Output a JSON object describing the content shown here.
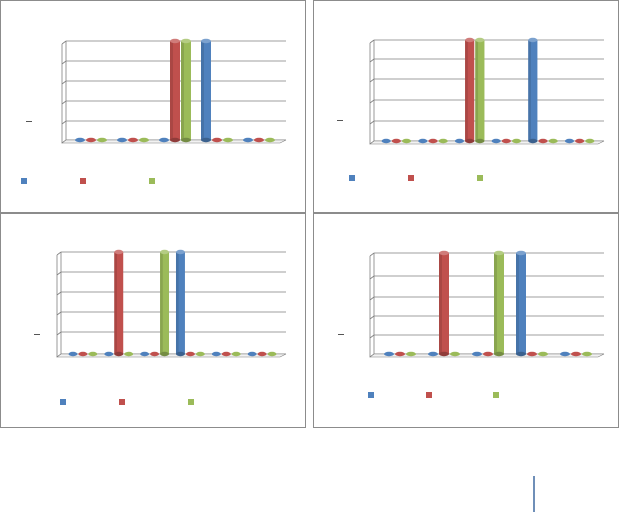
{
  "colors": {
    "series1": "#4f81bd",
    "series2": "#c0504d",
    "series3": "#9bbb59",
    "grid": "#7f7f7f",
    "panel_border": "#8c8c8c"
  },
  "chart_data": [
    {
      "type": "bar",
      "title": "",
      "xlabel": "",
      "ylabel": "",
      "categories": [
        "",
        "",
        "",
        "",
        ""
      ],
      "ylim": [
        0,
        5
      ],
      "grid": true,
      "legend_placement": "bottom",
      "series": [
        {
          "name": "",
          "color": "#4f81bd",
          "values": [
            0,
            0,
            0,
            5,
            0
          ]
        },
        {
          "name": "",
          "color": "#c0504d",
          "values": [
            0,
            0,
            5,
            0,
            0
          ]
        },
        {
          "name": "",
          "color": "#9bbb59",
          "values": [
            0,
            0,
            5,
            0,
            0
          ]
        }
      ]
    },
    {
      "type": "bar",
      "title": "",
      "xlabel": "",
      "ylabel": "",
      "categories": [
        "",
        "",
        "",
        "",
        "",
        ""
      ],
      "ylim": [
        0,
        5
      ],
      "grid": true,
      "legend_placement": "bottom",
      "series": [
        {
          "name": "",
          "color": "#4f81bd",
          "values": [
            0,
            0,
            0,
            0,
            5,
            0
          ]
        },
        {
          "name": "",
          "color": "#c0504d",
          "values": [
            0,
            0,
            5,
            0,
            0,
            0
          ]
        },
        {
          "name": "",
          "color": "#9bbb59",
          "values": [
            0,
            0,
            5,
            0,
            0,
            0
          ]
        }
      ]
    },
    {
      "type": "bar",
      "title": "",
      "xlabel": "",
      "ylabel": "",
      "categories": [
        "",
        "",
        "",
        "",
        "",
        ""
      ],
      "ylim": [
        0,
        5
      ],
      "grid": true,
      "legend_placement": "bottom",
      "series": [
        {
          "name": "",
          "color": "#4f81bd",
          "values": [
            0,
            0,
            0,
            5,
            0,
            0
          ]
        },
        {
          "name": "",
          "color": "#c0504d",
          "values": [
            0,
            5,
            0,
            0,
            0,
            0
          ]
        },
        {
          "name": "",
          "color": "#9bbb59",
          "values": [
            0,
            0,
            5,
            0,
            0,
            0
          ]
        }
      ]
    },
    {
      "type": "bar",
      "title": "",
      "xlabel": "",
      "ylabel": "",
      "categories": [
        "",
        "",
        "",
        "",
        ""
      ],
      "ylim": [
        0,
        5
      ],
      "grid": true,
      "legend_placement": "bottom",
      "series": [
        {
          "name": "",
          "color": "#4f81bd",
          "values": [
            0,
            0,
            0,
            5,
            0
          ]
        },
        {
          "name": "",
          "color": "#c0504d",
          "values": [
            0,
            5,
            0,
            0,
            0
          ]
        },
        {
          "name": "",
          "color": "#9bbb59",
          "values": [
            0,
            0,
            5,
            0,
            0
          ]
        }
      ]
    }
  ]
}
